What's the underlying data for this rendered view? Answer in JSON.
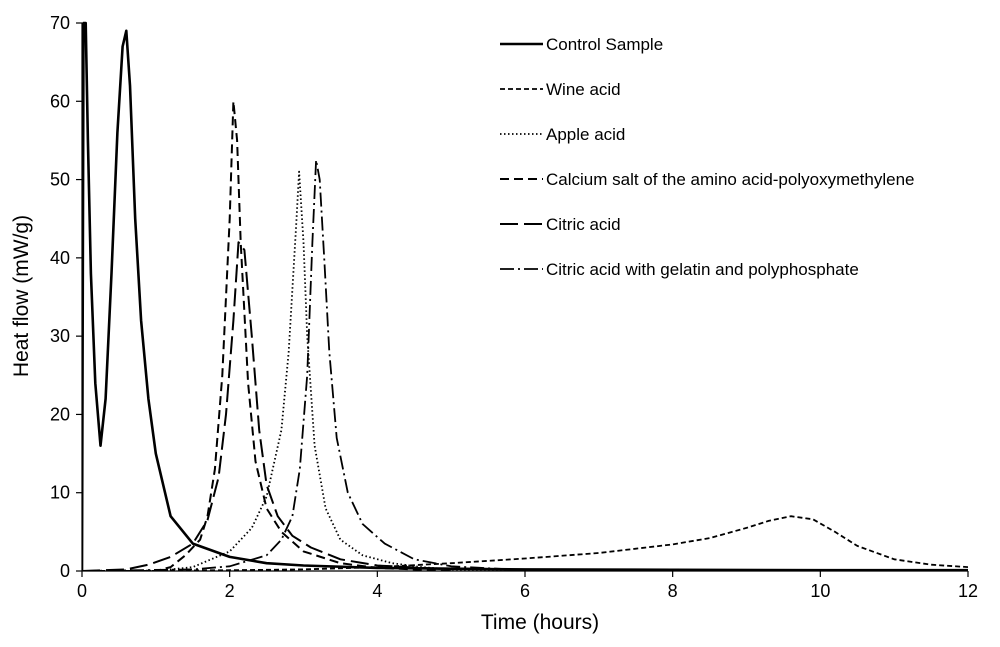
{
  "chart_data": {
    "type": "line",
    "xlabel": "Time (hours)",
    "ylabel": "Heat flow (mW/g)",
    "xlim": [
      0,
      12
    ],
    "ylim": [
      0,
      70
    ],
    "xticks": [
      0,
      2,
      4,
      6,
      8,
      10,
      12
    ],
    "yticks": [
      0,
      10,
      20,
      30,
      40,
      50,
      60,
      70
    ],
    "grid": false,
    "legend_position": "top-right",
    "series": [
      {
        "name": "Control Sample",
        "dash": "solid",
        "x": [
          0,
          0.02,
          0.05,
          0.08,
          0.12,
          0.18,
          0.25,
          0.32,
          0.4,
          0.48,
          0.55,
          0.6,
          0.65,
          0.72,
          0.8,
          0.9,
          1.0,
          1.2,
          1.5,
          2.0,
          2.5,
          3.0,
          4.0,
          5.0,
          6.0,
          8.0,
          10.0,
          12.0
        ],
        "y": [
          0,
          70,
          70,
          55,
          38,
          24,
          16,
          22,
          38,
          56,
          67,
          69,
          62,
          45,
          32,
          22,
          15,
          7,
          3.5,
          1.8,
          1.0,
          0.7,
          0.4,
          0.3,
          0.2,
          0.15,
          0.1,
          0.1
        ]
      },
      {
        "name": "Wine acid",
        "dash": "short-dash",
        "x": [
          0,
          0.5,
          1,
          2,
          3,
          4,
          5,
          6,
          7,
          8,
          8.5,
          9.0,
          9.3,
          9.6,
          9.9,
          10.2,
          10.5,
          11.0,
          11.5,
          12.0
        ],
        "y": [
          0,
          0,
          0.05,
          0.1,
          0.2,
          0.5,
          1.0,
          1.6,
          2.3,
          3.4,
          4.2,
          5.5,
          6.4,
          7.0,
          6.6,
          5.0,
          3.2,
          1.5,
          0.8,
          0.5
        ]
      },
      {
        "name": "Apple acid",
        "dash": "dotted",
        "x": [
          0,
          1.0,
          1.5,
          2.0,
          2.3,
          2.5,
          2.7,
          2.8,
          2.9,
          2.94,
          3.0,
          3.05,
          3.15,
          3.3,
          3.5,
          3.8,
          4.2,
          4.6,
          5.0,
          6.0
        ],
        "y": [
          0,
          0,
          0.5,
          2.5,
          5.5,
          9.5,
          18,
          28,
          44,
          51,
          42,
          30,
          16,
          8,
          4,
          2,
          1,
          0.5,
          0.2,
          0
        ]
      },
      {
        "name": "Calcium salt of the amino acid-polyoxymethylene",
        "dash": "dash",
        "x": [
          0,
          1.0,
          1.2,
          1.4,
          1.6,
          1.7,
          1.8,
          1.9,
          2.0,
          2.05,
          2.1,
          2.15,
          2.25,
          2.35,
          2.5,
          2.7,
          3.0,
          3.5,
          4.0,
          5.0
        ],
        "y": [
          0,
          0,
          0.5,
          2.0,
          4.0,
          7.0,
          13,
          25,
          45,
          60,
          55,
          42,
          24,
          14,
          8,
          5,
          2.5,
          1.0,
          0.4,
          0
        ]
      },
      {
        "name": "Citric acid",
        "dash": "long-dash",
        "x": [
          0,
          0.6,
          0.9,
          1.2,
          1.5,
          1.7,
          1.85,
          1.95,
          2.05,
          2.12,
          2.2,
          2.3,
          2.4,
          2.5,
          2.65,
          2.85,
          3.1,
          3.5,
          4.0,
          5.0
        ],
        "y": [
          0,
          0.2,
          0.8,
          1.8,
          3.5,
          6.5,
          12,
          20,
          32,
          42,
          41,
          30,
          18,
          11,
          7,
          4.5,
          3,
          1.5,
          0.7,
          0.2
        ]
      },
      {
        "name": "Citric acid with gelatin and polyphosphate",
        "dash": "dash-dot",
        "x": [
          0,
          1.5,
          2.0,
          2.5,
          2.7,
          2.85,
          2.95,
          3.05,
          3.12,
          3.17,
          3.22,
          3.28,
          3.35,
          3.45,
          3.6,
          3.8,
          4.1,
          4.5,
          5.0,
          6.0
        ],
        "y": [
          0,
          0.2,
          0.6,
          2.0,
          4.0,
          7.0,
          13,
          25,
          42,
          52.5,
          50,
          40,
          28,
          17,
          10,
          6,
          3.5,
          1.5,
          0.6,
          0.1
        ]
      }
    ]
  }
}
